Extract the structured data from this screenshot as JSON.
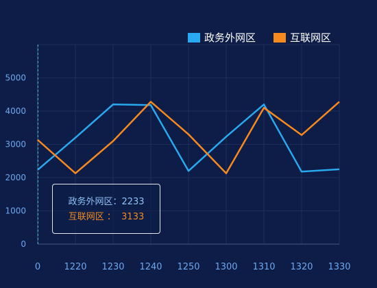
{
  "chart_data": {
    "type": "line",
    "categories": [
      "0",
      "1220",
      "1230",
      "1240",
      "1250",
      "1300",
      "1310",
      "1320",
      "1330"
    ],
    "series": [
      {
        "name": "政务外网区",
        "color": "#29a9ef",
        "values": [
          2233,
          3200,
          4200,
          4180,
          2200,
          3230,
          4200,
          2180,
          2250
        ]
      },
      {
        "name": "互联网区",
        "color": "#f68a1e",
        "values": [
          3133,
          2130,
          3100,
          4280,
          3300,
          2130,
          4100,
          3280,
          4280
        ]
      }
    ],
    "yticks": [
      0,
      1000,
      2000,
      3000,
      4000,
      5000
    ],
    "ylim": [
      0,
      6000
    ],
    "grid": true,
    "legend_position": "top-right"
  },
  "tooltip": {
    "row1_name": "政务外网区",
    "row1_sep": "：",
    "row1_value": "2233",
    "row2_name": "互联网区",
    "row2_sep": " ：  ",
    "row2_value": "3133"
  },
  "colors": {
    "background": "#0d1d47",
    "axis_label": "#6fa8ef",
    "grid": "#1d2e58",
    "tooltip_text1": "#8fc2f5",
    "tooltip_text2": "#f68a1e"
  }
}
